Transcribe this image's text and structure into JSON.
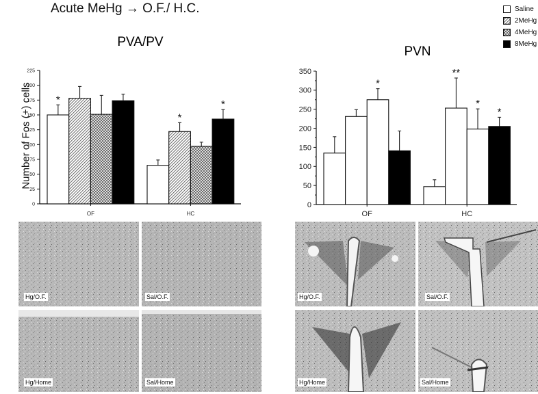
{
  "figure": {
    "title": "Acute MeHg → O.F./ H.C.",
    "ylabel": "Number of Fos (+) cells"
  },
  "legend": [
    {
      "label": "Saline",
      "pattern": "white"
    },
    {
      "label": "2MeHg",
      "pattern": "diagonal-hatch"
    },
    {
      "label": "4MeHg",
      "pattern": "crosshatch"
    },
    {
      "label": "8MeHg",
      "pattern": "black"
    }
  ],
  "chart_data": [
    {
      "type": "bar",
      "title": "PVA/PV",
      "xlabel": "",
      "ylabel": "Number of Fos (+) cells",
      "categories": [
        "OF",
        "HC"
      ],
      "ylim": [
        0,
        225
      ],
      "yticks": [
        0,
        25,
        50,
        75,
        100,
        125,
        150,
        175,
        200,
        225
      ],
      "grid": false,
      "series": [
        {
          "name": "Saline",
          "values": [
            150,
            65
          ],
          "error_top": [
            167,
            74
          ],
          "sig": [
            "*",
            ""
          ]
        },
        {
          "name": "2MeHg",
          "values": [
            178,
            122
          ],
          "error_top": [
            198,
            137
          ],
          "sig": [
            "",
            "*"
          ]
        },
        {
          "name": "4MeHg",
          "values": [
            151,
            97
          ],
          "error_top": [
            183,
            104
          ],
          "sig": [
            "",
            ""
          ]
        },
        {
          "name": "8MeHg",
          "values": [
            174,
            143
          ],
          "error_top": [
            185,
            159
          ],
          "sig": [
            "",
            "*"
          ]
        }
      ]
    },
    {
      "type": "bar",
      "title": "PVN",
      "xlabel": "",
      "ylabel": "Number of Fos (+) cells",
      "categories": [
        "OF",
        "HC"
      ],
      "ylim": [
        0,
        350
      ],
      "yticks": [
        0,
        50,
        100,
        150,
        200,
        250,
        300,
        350
      ],
      "grid": false,
      "series": [
        {
          "name": "Saline",
          "values": [
            135,
            47
          ],
          "error_top": [
            178,
            65
          ],
          "sig": [
            "",
            ""
          ]
        },
        {
          "name": "2MeHg",
          "values": [
            231,
            253
          ],
          "error_top": [
            249,
            332
          ],
          "sig": [
            "",
            "**"
          ]
        },
        {
          "name": "4MeHg",
          "values": [
            275,
            198
          ],
          "error_top": [
            304,
            251
          ],
          "sig": [
            "*",
            "*"
          ]
        },
        {
          "name": "8MeHg",
          "values": [
            141,
            205
          ],
          "error_top": [
            193,
            229
          ],
          "sig": [
            "",
            "*"
          ]
        }
      ]
    }
  ],
  "micrographs": {
    "pva_pv": [
      {
        "label": "Hg/O.F."
      },
      {
        "label": "Sal/O.F."
      },
      {
        "label": "Hg/Home"
      },
      {
        "label": "Sal/Home"
      }
    ],
    "pvn": [
      {
        "label": "Hg/O.F."
      },
      {
        "label": "Sal/O.F."
      },
      {
        "label": "Hg/Home"
      },
      {
        "label": "Sal/Home"
      }
    ]
  }
}
